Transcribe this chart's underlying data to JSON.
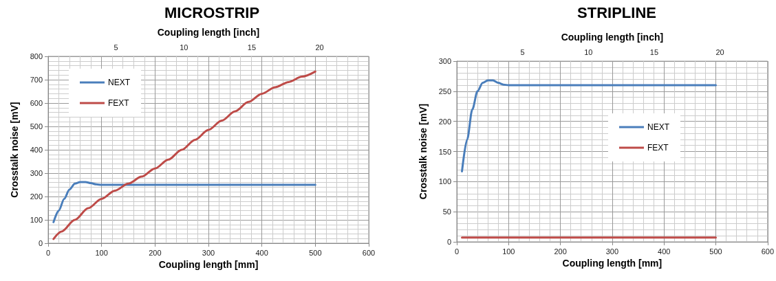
{
  "chart_data": [
    {
      "type": "line",
      "title": "MICROSTRIP",
      "xlabel": "Coupling length [mm]",
      "x2label": "Coupling length [inch]",
      "ylabel": "Crosstalk noise [mV]",
      "xlim": [
        0,
        600
      ],
      "xticks": [
        0,
        100,
        200,
        300,
        400,
        500,
        600
      ],
      "x2lim": [
        0,
        23.62
      ],
      "x2ticks": [
        5,
        10,
        15,
        20
      ],
      "ylim": [
        0,
        800
      ],
      "yticks": [
        0,
        100,
        200,
        300,
        400,
        500,
        600,
        700,
        800
      ],
      "grid": true,
      "legend": "top left",
      "marker": "none",
      "line_style": "solid",
      "series": [
        {
          "name": "NEXT",
          "color": "#4a7ebb",
          "x": [
            10,
            20,
            30,
            40,
            50,
            60,
            70,
            80,
            90,
            100,
            150,
            200,
            250,
            300,
            350,
            400,
            450,
            500
          ],
          "values": [
            90,
            140,
            190,
            230,
            255,
            262,
            262,
            257,
            252,
            250,
            250,
            250,
            250,
            250,
            250,
            250,
            250,
            250
          ]
        },
        {
          "name": "FEXT",
          "color": "#be4b48",
          "x": [
            10,
            25,
            50,
            75,
            100,
            125,
            150,
            175,
            200,
            225,
            250,
            275,
            300,
            325,
            350,
            375,
            400,
            425,
            450,
            475,
            500
          ],
          "values": [
            18,
            50,
            100,
            150,
            190,
            225,
            255,
            285,
            320,
            358,
            400,
            443,
            485,
            525,
            565,
            605,
            640,
            668,
            690,
            713,
            735
          ]
        }
      ]
    },
    {
      "type": "line",
      "title": "STRIPLINE",
      "xlabel": "Coupling length [mm]",
      "x2label": "Coupling length [inch]",
      "ylabel": "Crosstalk noise [mV]",
      "xlim": [
        0,
        600
      ],
      "xticks": [
        0,
        100,
        200,
        300,
        400,
        500,
        600
      ],
      "x2lim": [
        0,
        23.62
      ],
      "x2ticks": [
        5,
        10,
        15,
        20
      ],
      "ylim": [
        0,
        300
      ],
      "yticks": [
        0,
        50,
        100,
        150,
        200,
        250,
        300
      ],
      "grid": true,
      "legend": "center",
      "marker": "none",
      "line_style": "solid",
      "series": [
        {
          "name": "NEXT",
          "color": "#4a7ebb",
          "x": [
            10,
            20,
            30,
            40,
            50,
            60,
            70,
            80,
            90,
            100,
            150,
            200,
            250,
            300,
            350,
            400,
            450,
            500
          ],
          "values": [
            117,
            170,
            220,
            250,
            264,
            268,
            268,
            264,
            261,
            260,
            260,
            260,
            260,
            260,
            260,
            260,
            260,
            260
          ]
        },
        {
          "name": "FEXT",
          "color": "#be4b48",
          "x": [
            10,
            100,
            200,
            300,
            400,
            500
          ],
          "values": [
            7,
            7,
            7,
            7,
            7,
            7
          ]
        }
      ]
    }
  ]
}
